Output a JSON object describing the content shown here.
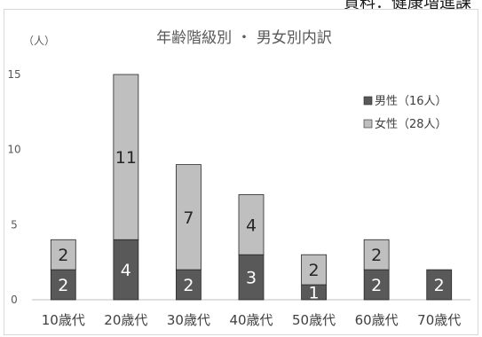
{
  "header_note": "資料：健康増進課",
  "chart_data": {
    "type": "bar",
    "stacked": true,
    "title": "年齢階級別 ・ 男女別内訳",
    "ylabel": "（人）",
    "categories": [
      "10歳代",
      "20歳代",
      "30歳代",
      "40歳代",
      "50歳代",
      "60歳代",
      "70歳代"
    ],
    "y_ticks": [
      "0",
      "5",
      "10",
      "15"
    ],
    "ylim": [
      0,
      15
    ],
    "series": [
      {
        "name": "男性（16人）",
        "values": [
          2,
          4,
          2,
          3,
          1,
          2,
          2
        ],
        "color": "#595959",
        "label_color": "#ffffff"
      },
      {
        "name": "女性（28人）",
        "values": [
          2,
          11,
          7,
          4,
          2,
          2,
          0
        ],
        "color": "#bfbfbf",
        "label_color": "#262626"
      }
    ],
    "legend_position": "right",
    "grid": false
  }
}
